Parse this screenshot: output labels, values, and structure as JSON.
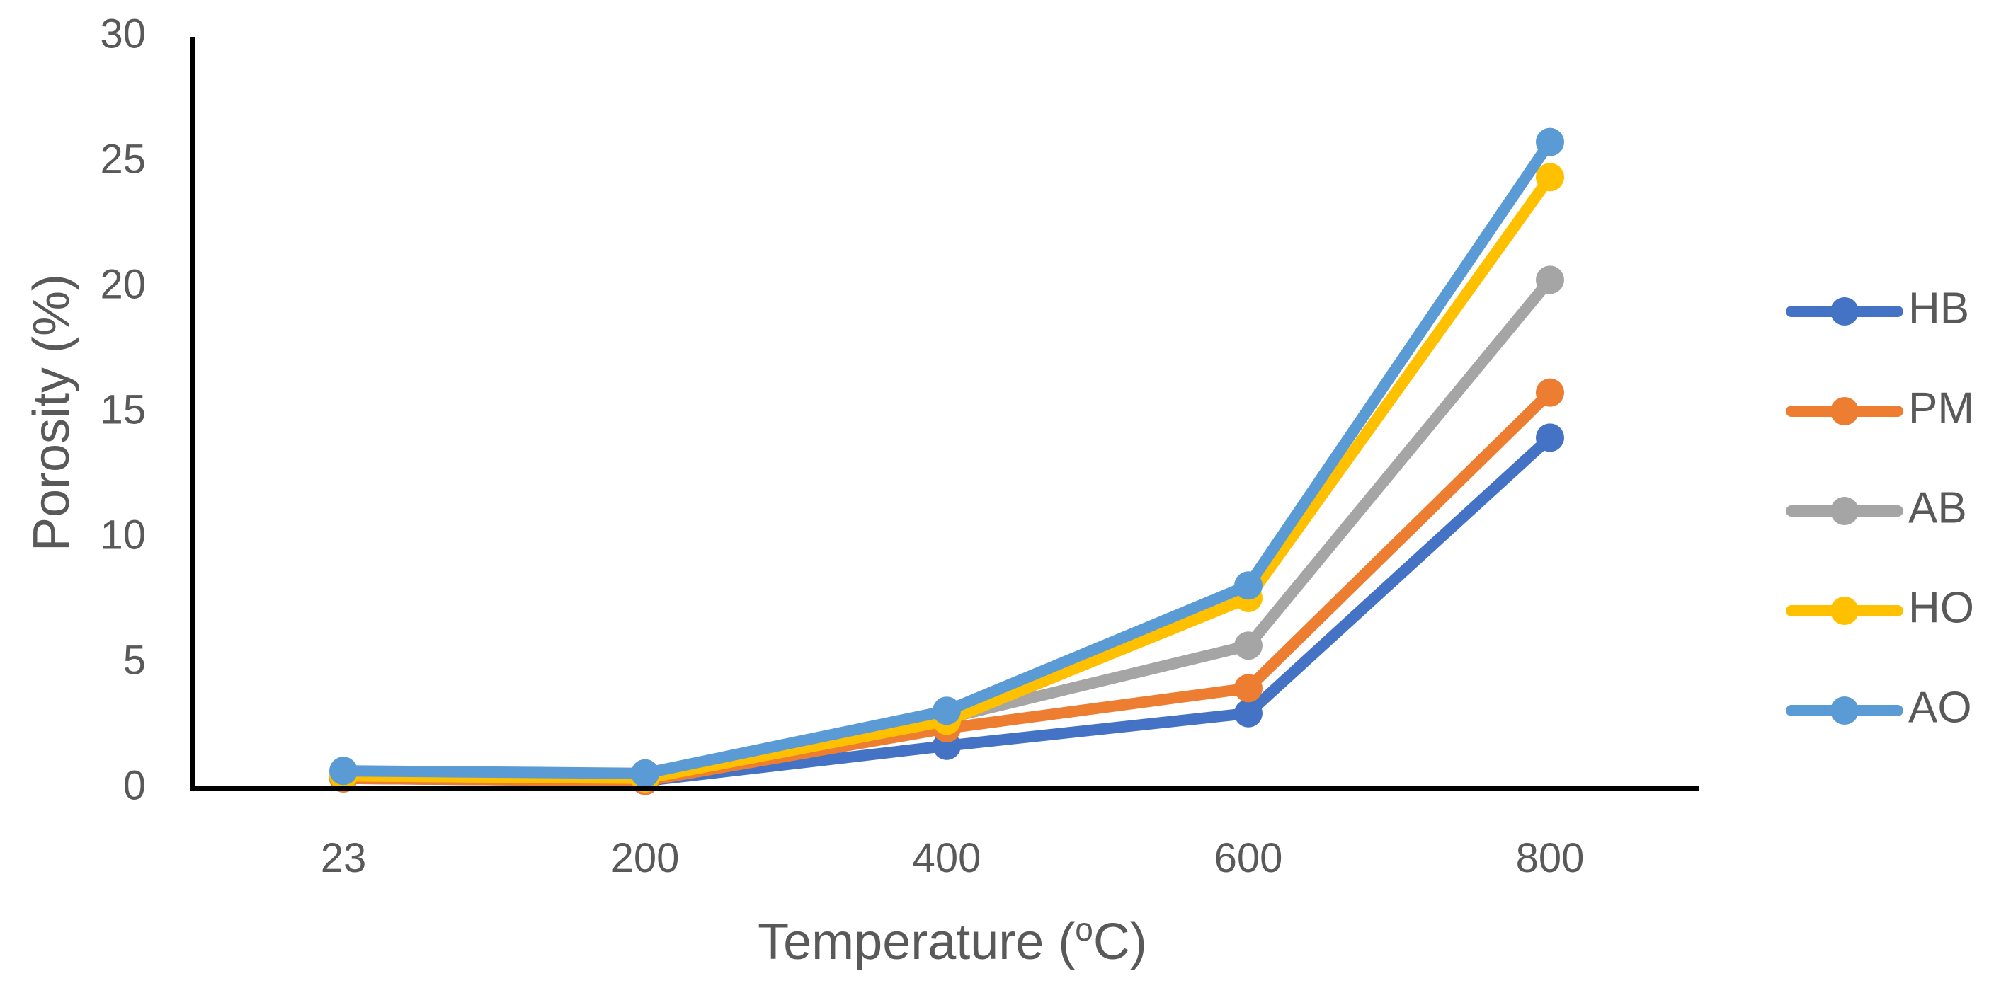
{
  "chart_data": {
    "type": "line",
    "title": "",
    "xlabel": "Temperature (",
    "xlabel_sup": "o",
    "xlabel_unit": "C)",
    "ylabel": "Porosity (%)",
    "categories": [
      "23",
      "200",
      "400",
      "600",
      "800"
    ],
    "ylim": [
      0,
      30
    ],
    "yticks": [
      0,
      5,
      10,
      15,
      20,
      25,
      30
    ],
    "ytick_labels": [
      "0",
      "5",
      "10",
      "15",
      "20",
      "25",
      "30"
    ],
    "grid": false,
    "legend_position": "right",
    "series": [
      {
        "name": "HB",
        "color": "#4472C4",
        "values": [
          0.4,
          0.3,
          1.7,
          3.0,
          14.0
        ]
      },
      {
        "name": "PM",
        "color": "#ED7D31",
        "values": [
          0.4,
          0.3,
          2.4,
          4.0,
          15.8
        ]
      },
      {
        "name": "AB",
        "color": "#A5A5A5",
        "values": [
          0.5,
          0.4,
          2.8,
          5.7,
          20.3
        ]
      },
      {
        "name": "HO",
        "color": "#FFC000",
        "values": [
          0.5,
          0.4,
          2.7,
          7.6,
          24.4
        ]
      },
      {
        "name": "AO",
        "color": "#5B9BD5",
        "values": [
          0.7,
          0.6,
          3.1,
          8.1,
          25.8
        ]
      }
    ]
  }
}
